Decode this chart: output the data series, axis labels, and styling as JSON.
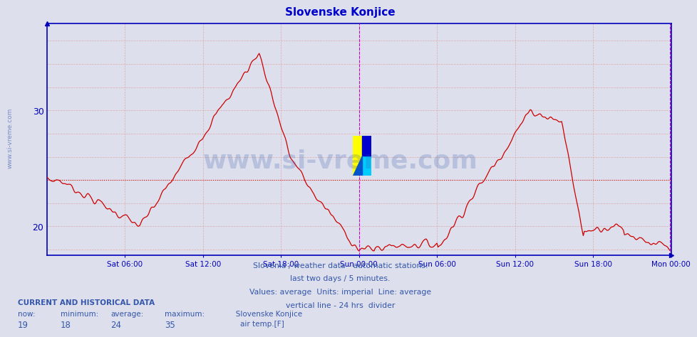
{
  "title": "Slovenske Konjice",
  "title_color": "#0000cc",
  "bg_color": "#dde0ec",
  "plot_bg_color": "#dde0ec",
  "line_color": "#cc0000",
  "avg_line_color": "#cc0000",
  "grid_color": "#b8b8cc",
  "grid_color2": "#ccccdd",
  "axis_color": "#0000bb",
  "tick_label_color": "#0000bb",
  "watermark_color": "#3355aa",
  "ylim": [
    17.5,
    37.5
  ],
  "yticks": [
    20,
    30
  ],
  "vline_color": "#cc00cc",
  "avg_value": 24,
  "footnote_color": "#3355aa",
  "footnote_lines": [
    "Slovenia / weather data - automatic stations.",
    "last two days / 5 minutes.",
    "Values: average  Units: imperial  Line: average",
    "vertical line - 24 hrs  divider"
  ],
  "bottom_label_color": "#3355aa",
  "bottom_value_color": "#3355aa",
  "now_val": "19",
  "min_val": "18",
  "avg_val": "24",
  "max_val": "35",
  "station": "Slovenske Konjice",
  "series_label": "air temp.[F]",
  "legend_color": "#cc0000",
  "num_points": 576,
  "x_tick_labels": [
    "Sat 06:00",
    "Sat 12:00",
    "Sat 18:00",
    "Sun 00:00",
    "Sun 06:00",
    "Sun 12:00",
    "Sun 18:00",
    "Mon 00:00"
  ],
  "x_tick_positions": [
    72,
    144,
    216,
    288,
    360,
    432,
    504,
    576
  ],
  "vline_pos": 288,
  "watermark_text": "www.si-vreme.com",
  "left_watermark": "www.si-vreme.com"
}
